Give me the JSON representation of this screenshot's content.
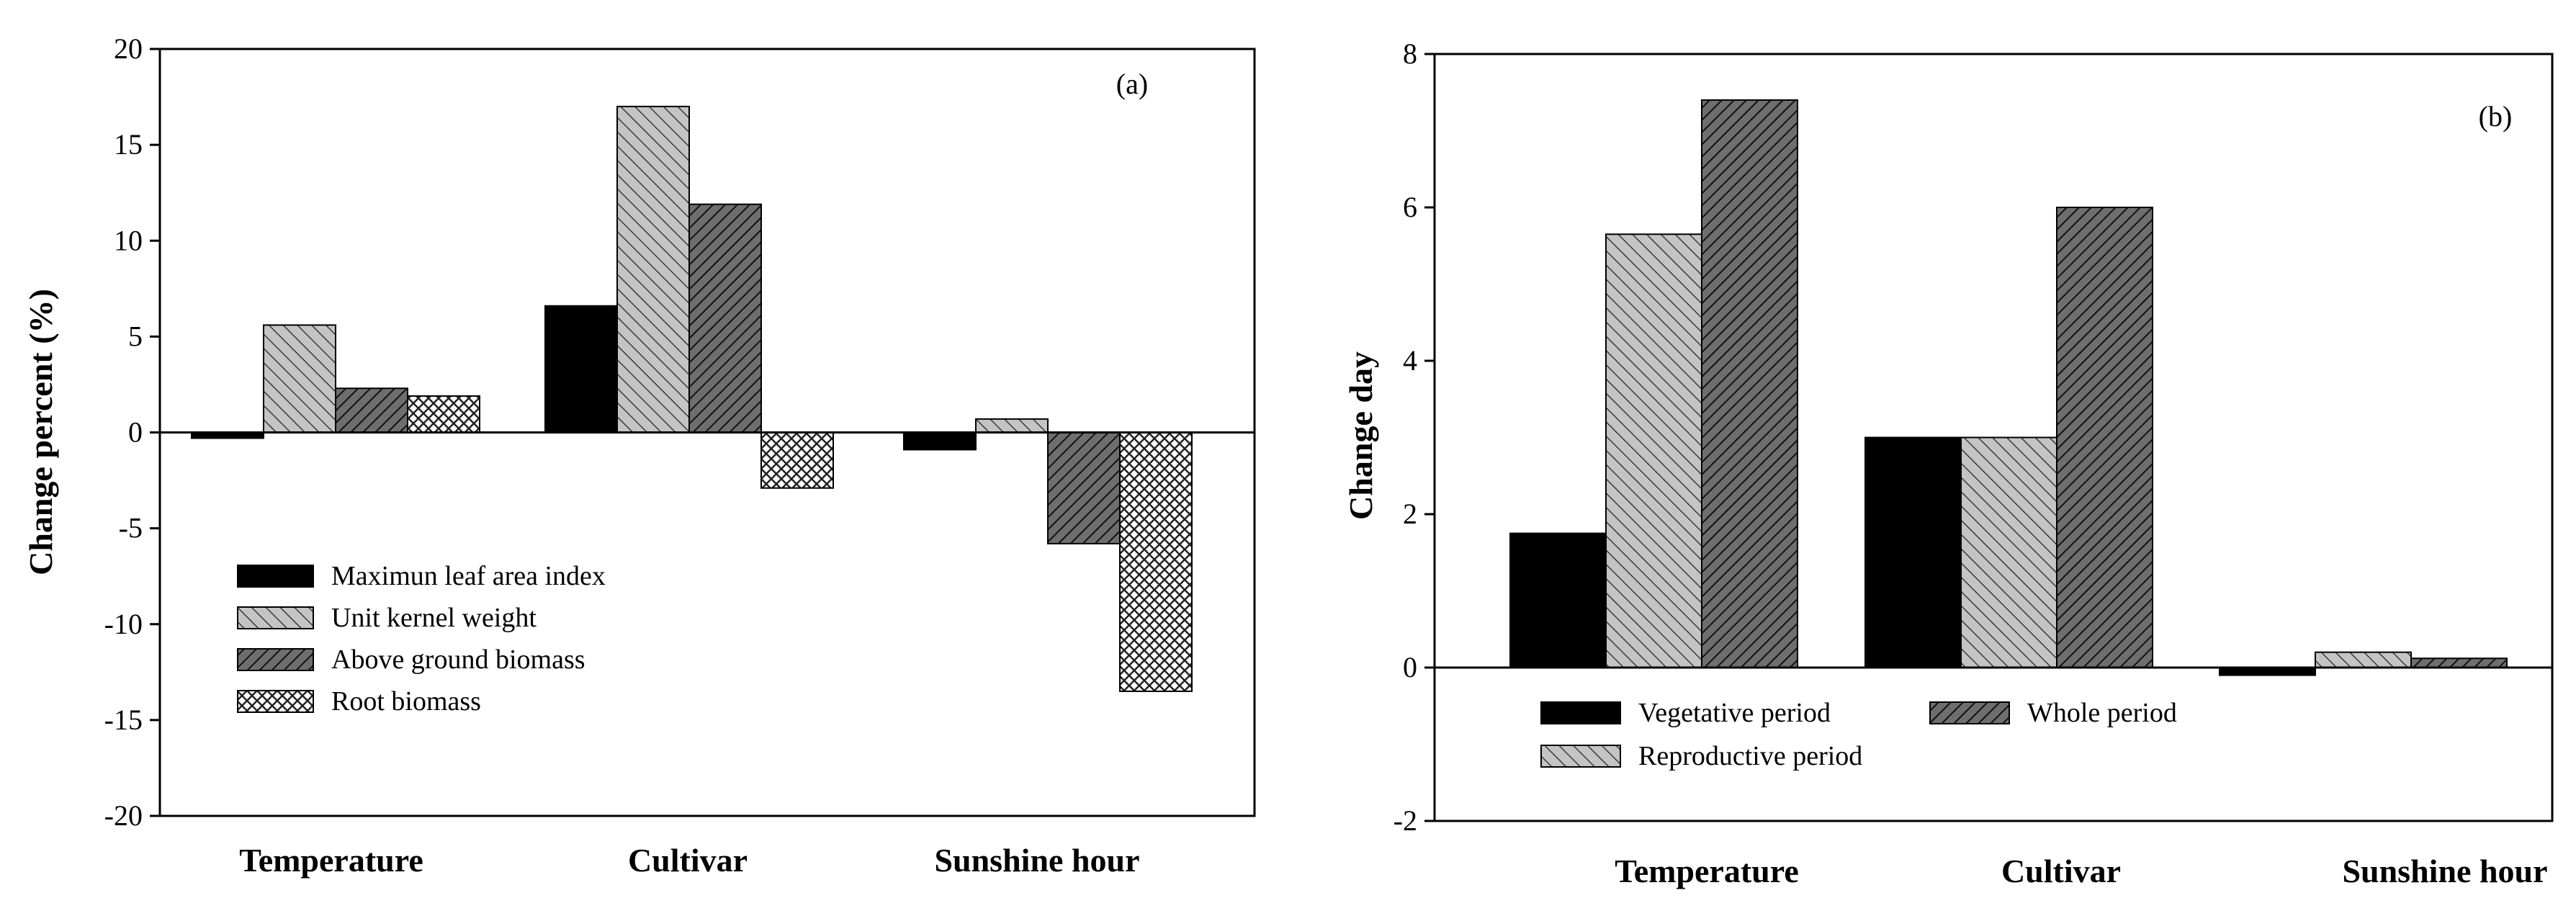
{
  "chart_data": [
    {
      "panel": "(a)",
      "type": "bar",
      "title": "",
      "xlabel": "",
      "ylabel": "Change percent (%)",
      "ylim": [
        -20,
        20
      ],
      "yticks": [
        20,
        15,
        10,
        5,
        0,
        -5,
        -10,
        -15,
        -20
      ],
      "categories": [
        "Temperature",
        "Cultivar",
        "Sunshine hour"
      ],
      "legend_position": "lower-left",
      "series": [
        {
          "name": "Maximun leaf area index",
          "pattern": "solid",
          "values": [
            -0.3,
            6.6,
            -0.9
          ]
        },
        {
          "name": "Unit kernel weight",
          "pattern": "hatch-light",
          "values": [
            5.6,
            17.0,
            0.7
          ]
        },
        {
          "name": "Above ground biomass",
          "pattern": "hatch-dark",
          "values": [
            2.3,
            11.9,
            -5.8
          ]
        },
        {
          "name": "Root biomass",
          "pattern": "cross",
          "values": [
            1.9,
            -2.9,
            -13.5
          ]
        }
      ]
    },
    {
      "panel": "(b)",
      "type": "bar",
      "title": "",
      "xlabel": "",
      "ylabel": "Change day",
      "ylim": [
        -2,
        8
      ],
      "yticks": [
        8,
        6,
        4,
        2,
        0,
        -2
      ],
      "categories": [
        "Temperature",
        "Cultivar",
        "Sunshine hour"
      ],
      "legend_position": "lower-left",
      "series": [
        {
          "name": "Vegetative period",
          "pattern": "solid",
          "values": [
            1.75,
            3.0,
            -0.1
          ]
        },
        {
          "name": "Reproductive period",
          "pattern": "hatch-light",
          "values": [
            5.65,
            3.0,
            0.2
          ]
        },
        {
          "name": "Whole period",
          "pattern": "hatch-dark",
          "values": [
            7.4,
            6.0,
            0.12
          ]
        }
      ]
    }
  ]
}
